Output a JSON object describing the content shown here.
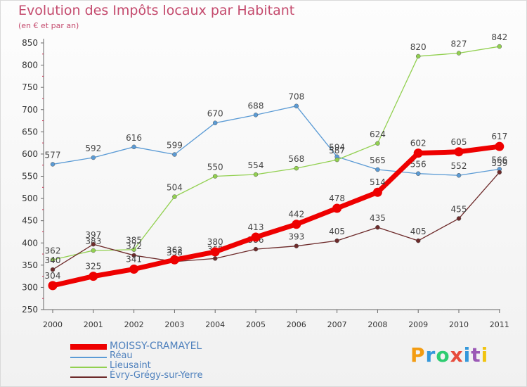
{
  "title": "Evolution des Impôts locaux par Habitant",
  "subtitle": "(en € et par an)",
  "logo": {
    "text": "Proxiti",
    "colors": [
      "#f39c12",
      "#3498db",
      "#2ecc71",
      "#e74c3c",
      "#3498db",
      "#9b59b6",
      "#f1c40f"
    ]
  },
  "chart_data": {
    "type": "line",
    "title": "Evolution des Impôts locaux par Habitant",
    "subtitle": "(en € et par an)",
    "categories": [
      "2000",
      "2001",
      "2002",
      "2003",
      "2004",
      "2005",
      "2006",
      "2007",
      "2008",
      "2009",
      "2010",
      "2011"
    ],
    "ylim": [
      250,
      850
    ],
    "yticks": [
      250,
      300,
      350,
      400,
      450,
      500,
      550,
      600,
      650,
      700,
      750,
      800,
      850
    ],
    "grid": false,
    "legend_position": "bottom-left",
    "series": [
      {
        "name": "Réau",
        "color": "#5b9bd5",
        "values": [
          577,
          592,
          616,
          599,
          670,
          688,
          708,
          594,
          565,
          556,
          552,
          566
        ]
      },
      {
        "name": "Lieusaint",
        "color": "#92d050",
        "values": [
          362,
          383,
          385,
          504,
          550,
          554,
          568,
          587,
          624,
          820,
          827,
          842
        ]
      },
      {
        "name": "Évry-Grégy-sur-Yerre",
        "color": "#6d2a2a",
        "values": [
          340,
          397,
          372,
          358,
          365,
          386,
          393,
          405,
          435,
          405,
          455,
          559
        ]
      },
      {
        "name": "MOISSY-CRAMAYEL",
        "color": "#ee0000",
        "values": [
          304,
          325,
          341,
          362,
          380,
          413,
          442,
          478,
          514,
          602,
          605,
          617
        ]
      }
    ],
    "legend_order": [
      "MOISSY-CRAMAYEL",
      "Réau",
      "Lieusaint",
      "Évry-Grégy-sur-Yerre"
    ]
  }
}
